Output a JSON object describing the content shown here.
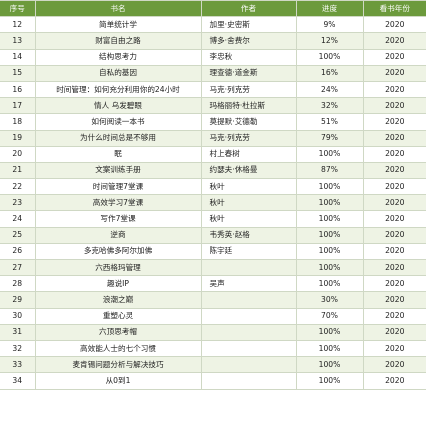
{
  "headers": {
    "index": "序号",
    "book": "书名",
    "author": "作者",
    "progress": "进度",
    "year": "看书年份"
  },
  "rows": [
    {
      "index": "12",
      "book": "简单统计学",
      "author": "加里·史密斯",
      "progress": "9%",
      "year": "2020"
    },
    {
      "index": "13",
      "book": "财富自由之路",
      "author": "博多·舍费尔",
      "progress": "12%",
      "year": "2020"
    },
    {
      "index": "14",
      "book": "结构思考力",
      "author": "李忠秋",
      "progress": "100%",
      "year": "2020"
    },
    {
      "index": "15",
      "book": "自私的基因",
      "author": "理查德·道金斯",
      "progress": "16%",
      "year": "2020"
    },
    {
      "index": "16",
      "book": "时间管理：如何充分利用你的24小时",
      "author": "马克·列克劳",
      "progress": "24%",
      "year": "2020"
    },
    {
      "index": "17",
      "book": "情人 乌发碧眼",
      "author": "玛格丽特·杜拉斯",
      "progress": "32%",
      "year": "2020"
    },
    {
      "index": "18",
      "book": "如何阅读一本书",
      "author": "莫提默·艾德勒",
      "progress": "51%",
      "year": "2020"
    },
    {
      "index": "19",
      "book": "为什么时间总是不够用",
      "author": "马克·列克劳",
      "progress": "79%",
      "year": "2020"
    },
    {
      "index": "20",
      "book": "眠",
      "author": "村上春树",
      "progress": "100%",
      "year": "2020"
    },
    {
      "index": "21",
      "book": "文案训练手册",
      "author": "约瑟夫·休格曼",
      "progress": "87%",
      "year": "2020"
    },
    {
      "index": "22",
      "book": "时间管理7堂课",
      "author": "秋叶",
      "progress": "100%",
      "year": "2020"
    },
    {
      "index": "23",
      "book": "高效学习7堂课",
      "author": "秋叶",
      "progress": "100%",
      "year": "2020"
    },
    {
      "index": "24",
      "book": "写作7堂课",
      "author": "秋叶",
      "progress": "100%",
      "year": "2020"
    },
    {
      "index": "25",
      "book": "逆商",
      "author": "韦秀英·赵格",
      "progress": "100%",
      "year": "2020"
    },
    {
      "index": "26",
      "book": "多克哈佛多阿尔加佛",
      "author": "陈宇廷",
      "progress": "100%",
      "year": "2020"
    },
    {
      "index": "27",
      "book": "六西格玛管理",
      "author": "",
      "progress": "100%",
      "year": "2020"
    },
    {
      "index": "28",
      "book": "趣说IP",
      "author": "吴声",
      "progress": "100%",
      "year": "2020"
    },
    {
      "index": "29",
      "book": "浪潮之巅",
      "author": "",
      "progress": "30%",
      "year": "2020"
    },
    {
      "index": "30",
      "book": "重塑心灵",
      "author": "",
      "progress": "70%",
      "year": "2020"
    },
    {
      "index": "31",
      "book": "六顶思考帽",
      "author": "",
      "progress": "100%",
      "year": "2020"
    },
    {
      "index": "32",
      "book": "高效能人士的七个习惯",
      "author": "",
      "progress": "100%",
      "year": "2020"
    },
    {
      "index": "33",
      "book": "麦肯锡问题分析与解决技巧",
      "author": "",
      "progress": "100%",
      "year": "2020"
    },
    {
      "index": "34",
      "book": "从0到1",
      "author": "",
      "progress": "100%",
      "year": "2020"
    }
  ],
  "colors": {
    "header_bg": "#6c9a3c",
    "header_text": "#ffffff",
    "stripe": "#eef3e4",
    "grid": "#cfd8c4"
  }
}
